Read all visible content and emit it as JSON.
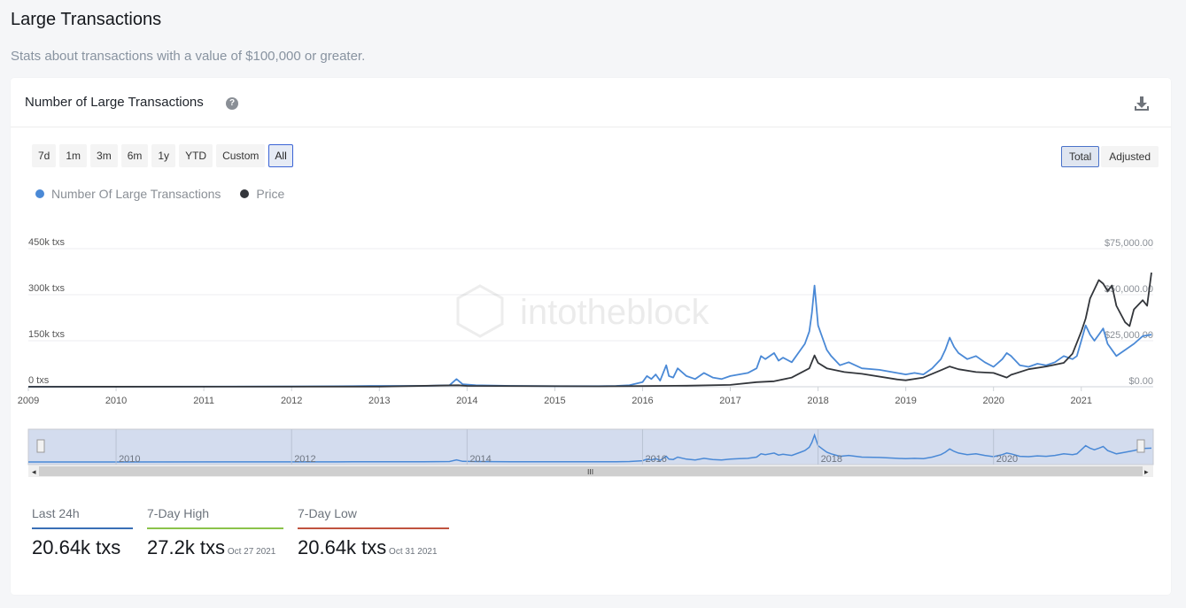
{
  "page": {
    "title": "Large Transactions",
    "subtitle": "Stats about transactions with a value of $100,000 or greater."
  },
  "card": {
    "title": "Number of Large Transactions",
    "help_icon": "question-circle-icon",
    "download_icon": "download-icon"
  },
  "range_buttons": [
    {
      "label": "7d",
      "active": false
    },
    {
      "label": "1m",
      "active": false
    },
    {
      "label": "3m",
      "active": false
    },
    {
      "label": "6m",
      "active": false
    },
    {
      "label": "1y",
      "active": false
    },
    {
      "label": "YTD",
      "active": false
    },
    {
      "label": "Custom",
      "active": false
    },
    {
      "label": "All",
      "active": true
    }
  ],
  "mode_buttons": [
    {
      "label": "Total",
      "active": true
    },
    {
      "label": "Adjusted",
      "active": false
    }
  ],
  "watermark": "intotheblock",
  "colors": {
    "transactions": "#4a89d6",
    "price": "#33363b",
    "last24h": "#3a6fb6",
    "high": "#8bc34a",
    "low": "#c0533f"
  },
  "chart_data": {
    "type": "line",
    "legend_position": "top-left",
    "grid": true,
    "x_ticks": [
      "2009",
      "2010",
      "2011",
      "2012",
      "2013",
      "2014",
      "2015",
      "2016",
      "2017",
      "2018",
      "2019",
      "2020",
      "2021"
    ],
    "x_range": [
      2009.0,
      2021.82
    ],
    "y_left": {
      "ticks": [
        "0 txs",
        "150k txs",
        "300k txs",
        "450k txs"
      ],
      "range": [
        0,
        450000
      ]
    },
    "y_right": {
      "ticks": [
        "$0.00",
        "$25,000.00",
        "$50,000.00",
        "$75,000.00"
      ],
      "range": [
        0,
        75000
      ]
    },
    "navigator_ticks": [
      "2010",
      "2012",
      "2014",
      "2016",
      "2018",
      "2020"
    ],
    "series": [
      {
        "name": "Number Of Large Transactions",
        "axis": "left",
        "x": [
          2009.0,
          2012.0,
          2012.7,
          2012.9,
          2013.5,
          2013.8,
          2013.88,
          2013.95,
          2014.1,
          2014.5,
          2015.0,
          2015.5,
          2015.7,
          2015.85,
          2016.0,
          2016.05,
          2016.1,
          2016.15,
          2016.2,
          2016.27,
          2016.3,
          2016.35,
          2016.4,
          2016.5,
          2016.6,
          2016.7,
          2016.8,
          2016.9,
          2017.0,
          2017.1,
          2017.2,
          2017.3,
          2017.35,
          2017.4,
          2017.5,
          2017.55,
          2017.6,
          2017.7,
          2017.8,
          2017.85,
          2017.9,
          2017.93,
          2017.96,
          2018.0,
          2018.05,
          2018.1,
          2018.15,
          2018.25,
          2018.35,
          2018.5,
          2018.7,
          2018.9,
          2019.0,
          2019.1,
          2019.2,
          2019.3,
          2019.4,
          2019.45,
          2019.5,
          2019.55,
          2019.6,
          2019.7,
          2019.8,
          2019.9,
          2020.0,
          2020.1,
          2020.15,
          2020.2,
          2020.3,
          2020.4,
          2020.5,
          2020.6,
          2020.7,
          2020.8,
          2020.9,
          2020.95,
          2021.0,
          2021.05,
          2021.1,
          2021.15,
          2021.2,
          2021.25,
          2021.3,
          2021.4,
          2021.5,
          2021.6,
          2021.7,
          2021.8
        ],
        "values": [
          0,
          1000,
          2000,
          3000,
          3000,
          5000,
          25000,
          8000,
          5000,
          3000,
          2000,
          2000,
          3000,
          5000,
          15000,
          35000,
          25000,
          40000,
          20000,
          70000,
          35000,
          30000,
          60000,
          35000,
          25000,
          45000,
          30000,
          25000,
          35000,
          40000,
          45000,
          60000,
          100000,
          90000,
          110000,
          85000,
          95000,
          80000,
          120000,
          140000,
          180000,
          240000,
          330000,
          200000,
          160000,
          120000,
          100000,
          70000,
          80000,
          60000,
          55000,
          45000,
          40000,
          45000,
          40000,
          60000,
          90000,
          120000,
          160000,
          130000,
          110000,
          90000,
          100000,
          80000,
          65000,
          90000,
          110000,
          100000,
          70000,
          65000,
          75000,
          70000,
          80000,
          100000,
          90000,
          100000,
          150000,
          200000,
          170000,
          150000,
          170000,
          190000,
          140000,
          100000,
          120000,
          140000,
          165000,
          170000
        ]
      },
      {
        "name": "Price",
        "axis": "right",
        "x": [
          2009.0,
          2013.0,
          2013.9,
          2014.0,
          2015.5,
          2016.0,
          2016.5,
          2017.0,
          2017.3,
          2017.5,
          2017.7,
          2017.9,
          2017.96,
          2018.0,
          2018.1,
          2018.3,
          2018.5,
          2018.9,
          2019.0,
          2019.2,
          2019.4,
          2019.5,
          2019.6,
          2019.8,
          2020.0,
          2020.15,
          2020.2,
          2020.4,
          2020.6,
          2020.8,
          2020.9,
          2021.0,
          2021.05,
          2021.1,
          2021.2,
          2021.25,
          2021.3,
          2021.35,
          2021.4,
          2021.5,
          2021.55,
          2021.6,
          2021.7,
          2021.75,
          2021.8
        ],
        "values": [
          0,
          100,
          800,
          500,
          250,
          400,
          600,
          1000,
          2500,
          3000,
          5000,
          10000,
          17000,
          13000,
          10000,
          8000,
          7000,
          4000,
          3500,
          5000,
          9000,
          11000,
          9500,
          8000,
          7500,
          5000,
          6500,
          9500,
          11000,
          13000,
          18000,
          30000,
          37000,
          48000,
          58000,
          56000,
          52000,
          55000,
          44000,
          35000,
          33000,
          42000,
          47000,
          44000,
          62000
        ]
      }
    ]
  },
  "stats": [
    {
      "label": "Last 24h",
      "value": "20.64k txs",
      "date": ""
    },
    {
      "label": "7-Day High",
      "value": "27.2k txs",
      "date": "Oct 27 2021"
    },
    {
      "label": "7-Day Low",
      "value": "20.64k txs",
      "date": "Oct 31 2021"
    }
  ]
}
